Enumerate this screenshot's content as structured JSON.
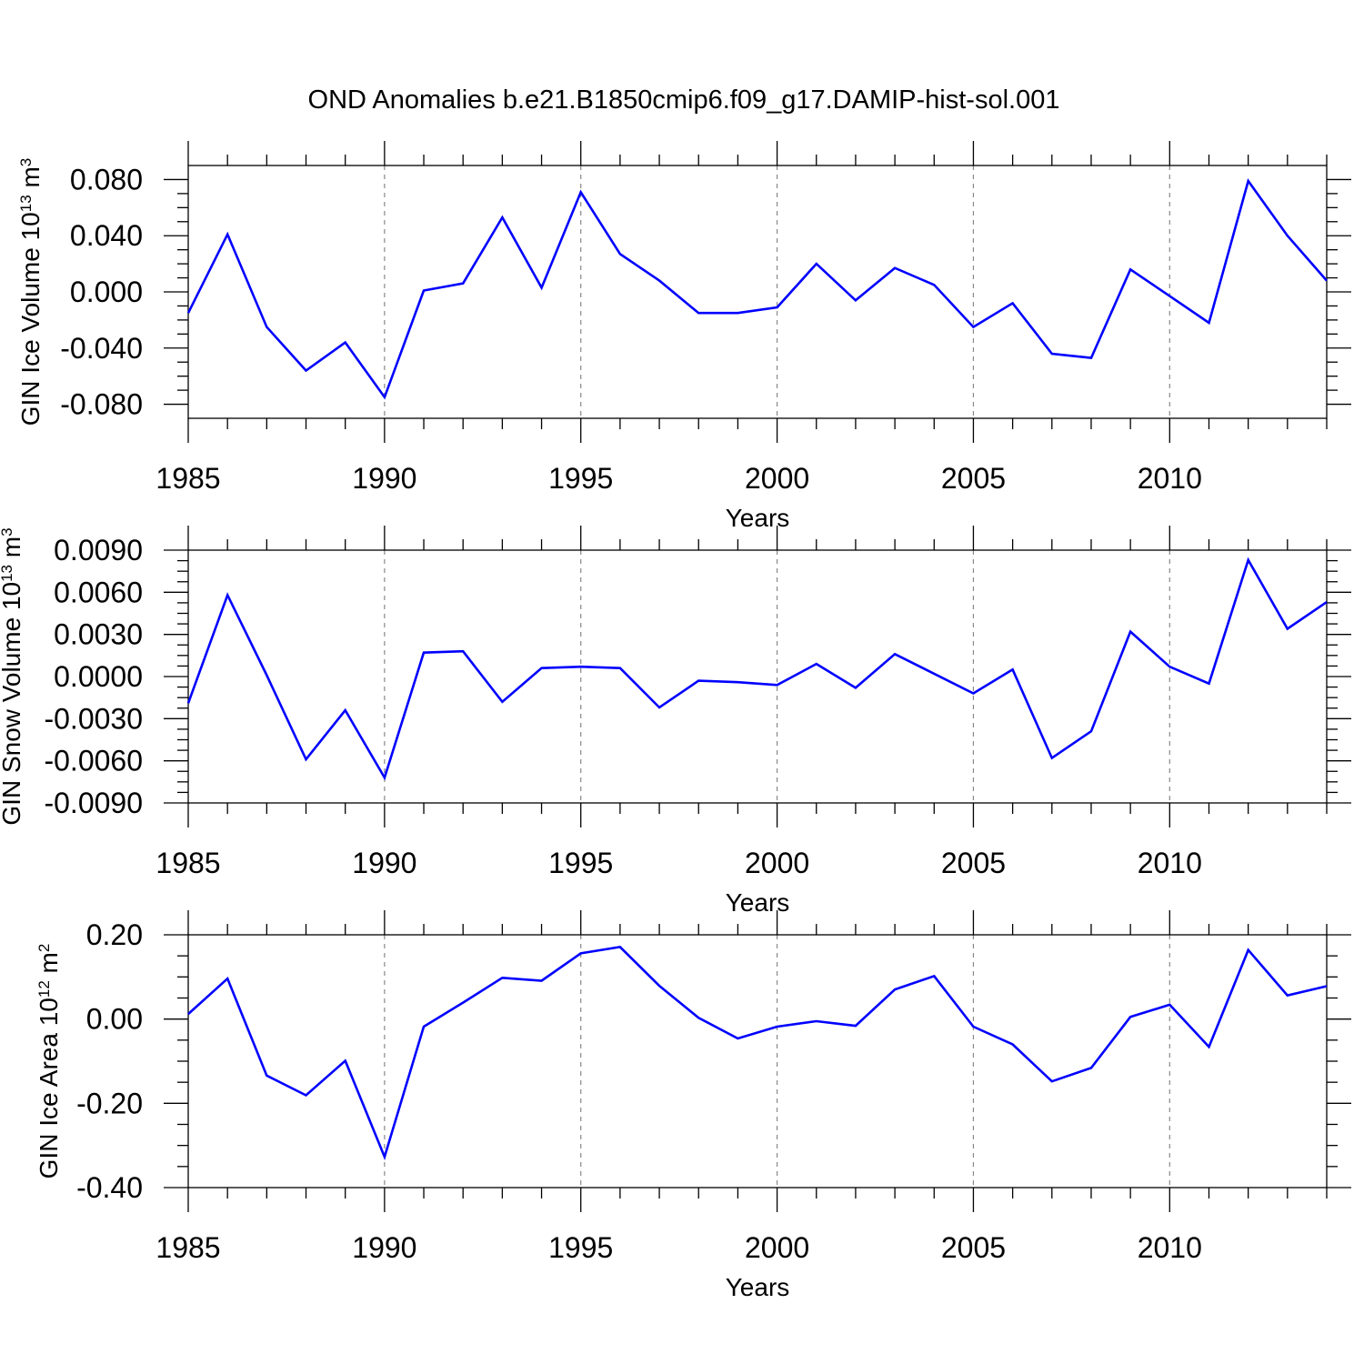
{
  "figure_title": "OND Anomalies b.e21.B1850cmip6.f09_g17.DAMIP-hist-sol.001",
  "line_color": "#0000ff",
  "chart_data": [
    {
      "type": "line",
      "title": "OND Anomalies b.e21.B1850cmip6.f09_g17.DAMIP-hist-sol.001",
      "xlabel": "Years",
      "ylabel": {
        "text": "GIN Ice Volume 10",
        "sup": "13",
        "text2": " m",
        "sup2": "3"
      },
      "xlim": [
        1985,
        2014
      ],
      "ylim": [
        -0.09,
        0.09
      ],
      "xticks": [
        1985,
        1990,
        1995,
        2000,
        2005,
        2010
      ],
      "xtick_labels": [
        "1985",
        "1990",
        "1995",
        "2000",
        "2005",
        "2010"
      ],
      "yticks": [
        -0.08,
        -0.04,
        0.0,
        0.04,
        0.08
      ],
      "ytick_labels": [
        "-0.080",
        "-0.040",
        "0.000",
        "0.040",
        "0.080"
      ],
      "x": [
        1985,
        1986,
        1987,
        1988,
        1989,
        1990,
        1991,
        1992,
        1993,
        1994,
        1995,
        1996,
        1997,
        1998,
        1999,
        2000,
        2001,
        2002,
        2003,
        2004,
        2005,
        2006,
        2007,
        2008,
        2009,
        2010,
        2011,
        2012,
        2013,
        2014
      ],
      "y": [
        -0.015,
        0.041,
        -0.025,
        -0.056,
        -0.036,
        -0.075,
        0.001,
        0.006,
        0.053,
        0.003,
        0.071,
        0.027,
        0.008,
        -0.015,
        -0.015,
        -0.011,
        0.02,
        -0.006,
        0.017,
        0.005,
        -0.025,
        -0.008,
        -0.044,
        -0.047,
        0.016,
        -0.003,
        -0.022,
        0.079,
        0.04,
        0.008
      ],
      "grid": "vertical dashed at major x ticks"
    },
    {
      "type": "line",
      "xlabel": "Years",
      "ylabel": {
        "text": "GIN Snow Volume 10",
        "sup": "13",
        "text2": " m",
        "sup2": "3"
      },
      "xlim": [
        1985,
        2014
      ],
      "ylim": [
        -0.009,
        0.009
      ],
      "xticks": [
        1985,
        1990,
        1995,
        2000,
        2005,
        2010
      ],
      "xtick_labels": [
        "1985",
        "1990",
        "1995",
        "2000",
        "2005",
        "2010"
      ],
      "yticks": [
        -0.009,
        -0.006,
        -0.003,
        0.0,
        0.003,
        0.006,
        0.009
      ],
      "ytick_labels": [
        "-0.0090",
        "-0.0060",
        "-0.0030",
        "0.0000",
        "0.0030",
        "0.0060",
        "0.0090"
      ],
      "x": [
        1985,
        1986,
        1987,
        1988,
        1989,
        1990,
        1991,
        1992,
        1993,
        1994,
        1995,
        1996,
        1997,
        1998,
        1999,
        2000,
        2001,
        2002,
        2003,
        2004,
        2005,
        2006,
        2007,
        2008,
        2009,
        2010,
        2011,
        2012,
        2013,
        2014
      ],
      "y": [
        -0.0019,
        0.0058,
        0.0001,
        -0.0059,
        -0.0024,
        -0.0072,
        0.0017,
        0.0018,
        -0.0018,
        0.0006,
        0.0007,
        0.0006,
        -0.0022,
        -0.0003,
        -0.0004,
        -0.0006,
        0.0009,
        -0.0008,
        0.0016,
        0.0002,
        -0.0012,
        0.0005,
        -0.0058,
        -0.0039,
        0.0032,
        0.0007,
        -0.0005,
        0.0083,
        0.0034,
        0.0053
      ],
      "grid": "vertical dashed at major x ticks"
    },
    {
      "type": "line",
      "xlabel": "Years",
      "ylabel": {
        "text": "GIN Ice Area 10",
        "sup": "12",
        "text2": " m",
        "sup2": "2"
      },
      "xlim": [
        1985,
        2014
      ],
      "ylim": [
        -0.4,
        0.2
      ],
      "xticks": [
        1985,
        1990,
        1995,
        2000,
        2005,
        2010
      ],
      "xtick_labels": [
        "1985",
        "1990",
        "1995",
        "2000",
        "2005",
        "2010"
      ],
      "yticks": [
        -0.4,
        -0.2,
        0.0,
        0.2
      ],
      "ytick_labels": [
        "-0.40",
        "-0.20",
        "0.00",
        "0.20"
      ],
      "x": [
        1985,
        1986,
        1987,
        1988,
        1989,
        1990,
        1991,
        1992,
        1993,
        1994,
        1995,
        1996,
        1997,
        1998,
        1999,
        2000,
        2001,
        2002,
        2003,
        2004,
        2005,
        2006,
        2007,
        2008,
        2009,
        2010,
        2011,
        2012,
        2013,
        2014
      ],
      "y": [
        0.012,
        0.096,
        -0.134,
        -0.181,
        -0.099,
        -0.327,
        -0.018,
        0.039,
        0.098,
        0.091,
        0.156,
        0.171,
        0.079,
        0.003,
        -0.046,
        -0.018,
        -0.005,
        -0.016,
        0.07,
        0.102,
        -0.018,
        -0.06,
        -0.148,
        -0.116,
        0.005,
        0.034,
        -0.066,
        0.164,
        0.056,
        0.078
      ],
      "grid": "vertical dashed at major x ticks"
    }
  ]
}
